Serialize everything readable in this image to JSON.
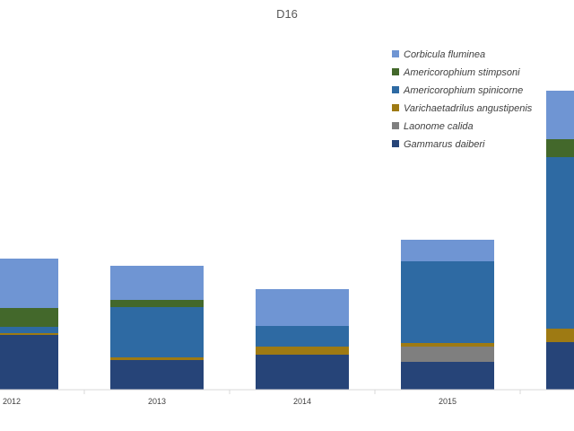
{
  "chart_data": {
    "type": "bar",
    "stacked": true,
    "title": "D16",
    "xlabel": "",
    "ylabel": "",
    "categories": [
      "2012",
      "2013",
      "2014",
      "2015",
      ""
    ],
    "ylim": [
      0,
      330
    ],
    "grid": false,
    "legend_position": "top-right",
    "series": [
      {
        "name": "Gammarus daiberi",
        "color": "#264478",
        "values": [
          61,
          33,
          39,
          31,
          53
        ]
      },
      {
        "name": "Laonome calida",
        "color": "#7f7f7f",
        "values": [
          0,
          0,
          0,
          17,
          0
        ]
      },
      {
        "name": "Varichaetadrilus angustipenis",
        "color": "#9e7a13",
        "values": [
          2,
          3,
          9,
          4,
          15
        ]
      },
      {
        "name": "Americorophium spinicorne",
        "color": "#2e6aa3",
        "values": [
          7,
          56,
          23,
          91,
          191
        ]
      },
      {
        "name": "Americorophium stimpsoni",
        "color": "#43682b",
        "values": [
          21,
          8,
          0,
          0,
          20
        ]
      },
      {
        "name": "Corbicula fluminea",
        "color": "#6f95d3",
        "values": [
          55,
          38,
          41,
          24,
          54
        ]
      }
    ],
    "legend_order": [
      "Corbicula fluminea",
      "Americorophium stimpsoni",
      "Americorophium spinicorne",
      "Varichaetadrilus angustipenis",
      "Laonome calida",
      "Gammarus daiberi"
    ]
  }
}
